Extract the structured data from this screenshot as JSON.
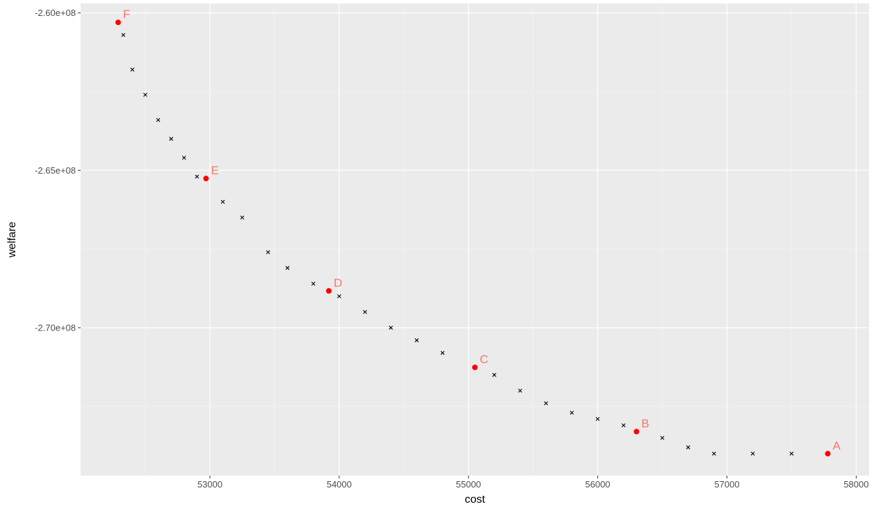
{
  "chart_data": {
    "type": "scatter",
    "xlabel": "cost",
    "ylabel": "welfare",
    "xlim": [
      52000,
      58100
    ],
    "ylim": [
      -274700000,
      -259700000
    ],
    "x_ticks": [
      53000,
      54000,
      55000,
      56000,
      57000,
      58000
    ],
    "x_tick_labels": [
      "53000",
      "54000",
      "55000",
      "56000",
      "57000",
      "58000"
    ],
    "y_ticks": [
      -260000000,
      -265000000,
      -270000000
    ],
    "y_tick_labels": [
      "-2.60e+08",
      "-2.65e+08",
      "-2.70e+08"
    ],
    "grid": true,
    "colors": {
      "panel": "#ebebeb",
      "grid_major": "#ffffff",
      "grid_minor": "#f5f5f5",
      "point": "#000000",
      "highlight": "#ff0000",
      "highlight_label": "#f8766d"
    },
    "frontier": [
      [
        52290,
        -260300000
      ],
      [
        52330,
        -260700000
      ],
      [
        52400,
        -261800000
      ],
      [
        52500,
        -262600000
      ],
      [
        52600,
        -263400000
      ],
      [
        52700,
        -264000000
      ],
      [
        52800,
        -264600000
      ],
      [
        52900,
        -265200000
      ],
      [
        52970,
        -265260000
      ],
      [
        53100,
        -266000000
      ],
      [
        53250,
        -266500000
      ],
      [
        53450,
        -267600000
      ],
      [
        53600,
        -268100000
      ],
      [
        53800,
        -268600000
      ],
      [
        53920,
        -268830000
      ],
      [
        54000,
        -269000000
      ],
      [
        54200,
        -269500000
      ],
      [
        54400,
        -270000000
      ],
      [
        54600,
        -270400000
      ],
      [
        54800,
        -270800000
      ],
      [
        55050,
        -271260000
      ],
      [
        55200,
        -271500000
      ],
      [
        55400,
        -272000000
      ],
      [
        55600,
        -272400000
      ],
      [
        55800,
        -272700000
      ],
      [
        56000,
        -272900000
      ],
      [
        56200,
        -273100000
      ],
      [
        56300,
        -273300000
      ],
      [
        56500,
        -273500000
      ],
      [
        56700,
        -273800000
      ],
      [
        56900,
        -274000000
      ],
      [
        57200,
        -274000000
      ],
      [
        57500,
        -274000000
      ],
      [
        57780,
        -274000000
      ]
    ],
    "highlight_points": [
      {
        "label": "A",
        "x": 57780,
        "y": -274000000
      },
      {
        "label": "B",
        "x": 56300,
        "y": -273300000
      },
      {
        "label": "C",
        "x": 55050,
        "y": -271260000
      },
      {
        "label": "D",
        "x": 53920,
        "y": -268830000
      },
      {
        "label": "E",
        "x": 52970,
        "y": -265260000
      },
      {
        "label": "F",
        "x": 52290,
        "y": -260300000
      }
    ]
  }
}
